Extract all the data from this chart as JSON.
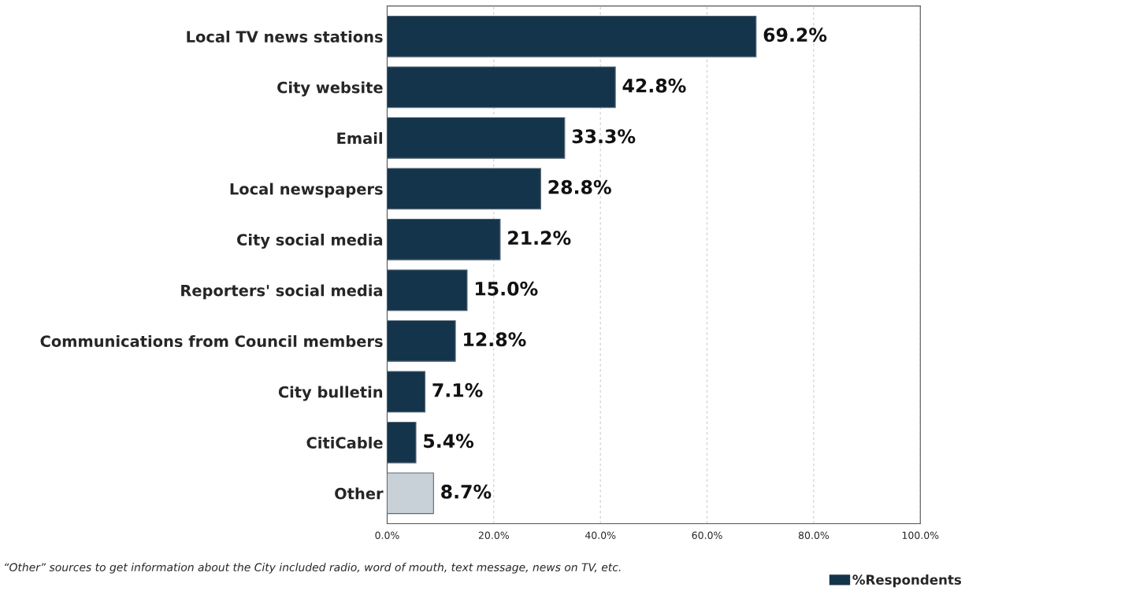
{
  "chart_data": {
    "type": "bar",
    "orientation": "horizontal",
    "categories": [
      "Local TV news stations",
      "City website",
      "Email",
      "Local newspapers",
      "City social media",
      "Reporters' social media",
      "Communications from Council members",
      "City bulletin",
      "CitiCable",
      "Other"
    ],
    "series": [
      {
        "name": "%Respondents",
        "color": "#14344b",
        "colors": [
          "#14344b",
          "#14344b",
          "#14344b",
          "#14344b",
          "#14344b",
          "#14344b",
          "#14344b",
          "#14344b",
          "#14344b",
          "#c9d1d8"
        ],
        "values": [
          69.2,
          42.8,
          33.3,
          28.8,
          21.2,
          15.0,
          12.8,
          7.1,
          5.4,
          8.7
        ],
        "value_labels": [
          "69.2%",
          "42.8%",
          "33.3%",
          "28.8%",
          "21.2%",
          "15.0%",
          "12.8%",
          "7.1%",
          "5.4%",
          "8.7%"
        ]
      }
    ],
    "xlim": [
      0,
      100
    ],
    "xticks": [
      {
        "value": 0,
        "label": "0.0%"
      },
      {
        "value": 20,
        "label": "20.0%"
      },
      {
        "value": 40,
        "label": "40.0%"
      },
      {
        "value": 60,
        "label": "60.0%"
      },
      {
        "value": 80,
        "label": "80.0%"
      },
      {
        "value": 100,
        "label": "100.0%"
      }
    ],
    "grid": "x",
    "legend": "bottom right",
    "annotations": [
      "“Other” sources to get information about the City included radio, word of mouth, text message, news on TV, etc."
    ]
  }
}
